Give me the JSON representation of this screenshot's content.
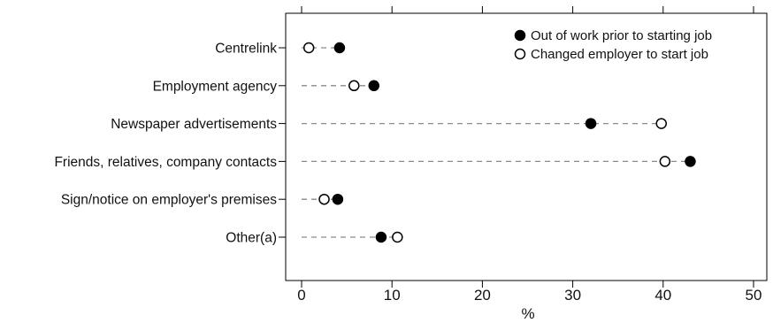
{
  "chart_data": {
    "type": "scatter",
    "style": "dot-plot",
    "xlabel": "%",
    "xlim": [
      0,
      50
    ],
    "xticks": [
      0,
      10,
      20,
      30,
      40,
      50
    ],
    "categories": [
      "Centrelink",
      "Employment agency",
      "Newspaper advertisements",
      "Friends, relatives, company contacts",
      "Sign/notice on employer's premises",
      "Other(a)"
    ],
    "series": [
      {
        "name": "Out of work prior to starting job",
        "marker": "filled-circle",
        "color": "#000000",
        "values": [
          4.2,
          8.0,
          32.0,
          43.0,
          4.0,
          8.8
        ]
      },
      {
        "name": "Changed employer to start job",
        "marker": "open-circle",
        "color": "#000000",
        "values": [
          0.8,
          5.8,
          39.8,
          40.2,
          2.5,
          10.6
        ]
      }
    ],
    "legend_position": "top-right",
    "grid": false,
    "connector_color": "#8a8a8a"
  }
}
